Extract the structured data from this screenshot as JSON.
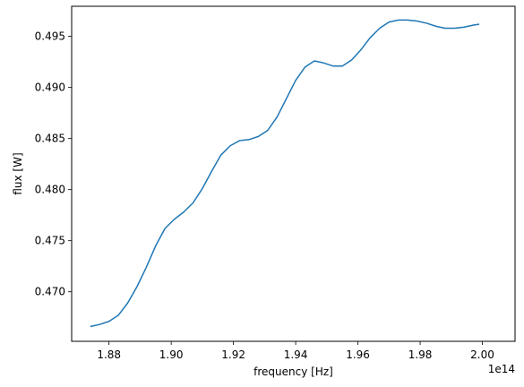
{
  "chart_data": {
    "type": "line",
    "xlabel": "frequency [Hz]",
    "ylabel": "flux [W]",
    "x_offset_text": "1e14",
    "xlim": [
      1.868,
      2.0105
    ],
    "ylim": [
      0.46515,
      0.49795
    ],
    "xticks": [
      1.88,
      1.9,
      1.92,
      1.94,
      1.96,
      1.98,
      2.0
    ],
    "xtick_labels": [
      "1.88",
      "1.90",
      "1.92",
      "1.94",
      "1.96",
      "1.98",
      "2.00"
    ],
    "yticks": [
      0.47,
      0.475,
      0.48,
      0.485,
      0.49,
      0.495
    ],
    "ytick_labels": [
      "0.470",
      "0.475",
      "0.480",
      "0.485",
      "0.490",
      "0.495"
    ],
    "grid": false,
    "line_color": "#1f77b4",
    "series": [
      {
        "x": [
          1.874,
          1.877,
          1.88,
          1.883,
          1.886,
          1.889,
          1.892,
          1.895,
          1.898,
          1.901,
          1.904,
          1.907,
          1.91,
          1.913,
          1.916,
          1.919,
          1.922,
          1.925,
          1.928,
          1.931,
          1.934,
          1.937,
          1.94,
          1.943,
          1.946,
          1.949,
          1.952,
          1.955,
          1.958,
          1.961,
          1.964,
          1.967,
          1.97,
          1.973,
          1.976,
          1.979,
          1.982,
          1.985,
          1.988,
          1.991,
          1.994,
          1.997,
          1.999
        ],
        "y": [
          0.4666,
          0.4668,
          0.4671,
          0.4677,
          0.4689,
          0.4705,
          0.4724,
          0.4745,
          0.4762,
          0.4771,
          0.4778,
          0.4787,
          0.4801,
          0.4818,
          0.4834,
          0.4843,
          0.4848,
          0.4849,
          0.4852,
          0.4858,
          0.4871,
          0.4889,
          0.4907,
          0.492,
          0.4926,
          0.4924,
          0.4921,
          0.4921,
          0.4927,
          0.4937,
          0.4949,
          0.4958,
          0.4964,
          0.4966,
          0.4966,
          0.4965,
          0.4963,
          0.496,
          0.4958,
          0.4958,
          0.4959,
          0.4961,
          0.4962
        ]
      }
    ]
  }
}
